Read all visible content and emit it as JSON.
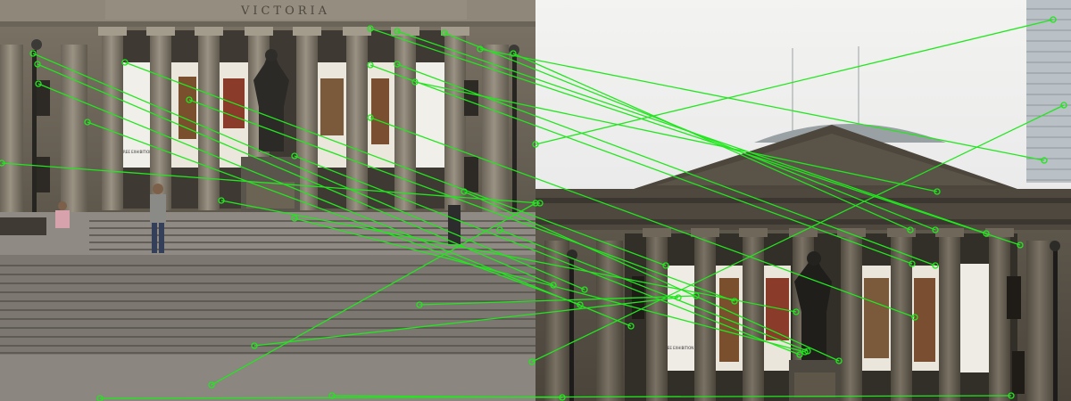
{
  "left_image": {
    "inscription": "VICTORIA",
    "banner_caption": "FREE EXHIBITION"
  },
  "right_image": {
    "banner_caption": "FREE EXHIBITION"
  },
  "match_overlay": {
    "line_color": "#22e61e",
    "point_color": "#22e61e",
    "match_count": 28
  }
}
